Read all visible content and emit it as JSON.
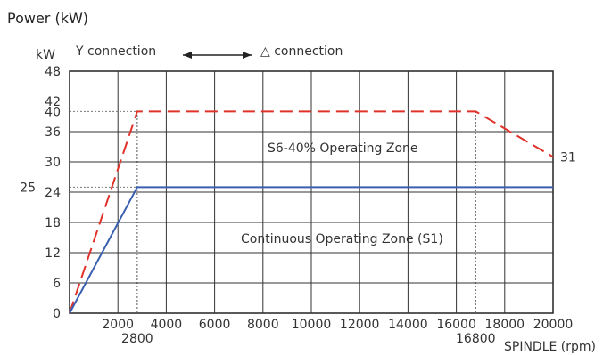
{
  "chart_data": {
    "type": "line",
    "title": "Power (kW)",
    "ylabel": "kW",
    "xlabel": "SPINDLE (rpm)",
    "xlim": [
      0,
      20000
    ],
    "ylim": [
      0,
      48
    ],
    "grid": true,
    "x_ticks": [
      "2000",
      "4000",
      "6000",
      "8000",
      "10000",
      "12000",
      "14000",
      "16000",
      "18000",
      "20000"
    ],
    "x_tick_values": [
      2000,
      4000,
      6000,
      8000,
      10000,
      12000,
      14000,
      16000,
      18000,
      20000
    ],
    "x_extra_ticks": [
      {
        "value": 2800,
        "label": "2800"
      },
      {
        "value": 16800,
        "label": "16800"
      }
    ],
    "y_ticks": [
      "0",
      "6",
      "12",
      "18",
      "24",
      "30",
      "36",
      "40",
      "42",
      "48"
    ],
    "y_tick_values": [
      0,
      6,
      12,
      18,
      24,
      30,
      36,
      40,
      42,
      48
    ],
    "y_extra_ticks": [
      {
        "value": 25,
        "label": "25"
      }
    ],
    "series": [
      {
        "name": "S6-40%",
        "style": "dashed",
        "color": "#e0312b",
        "x": [
          0,
          2800,
          16800,
          20000
        ],
        "y": [
          0,
          40,
          40,
          31
        ],
        "end_label": "31"
      },
      {
        "name": "S1",
        "style": "solid",
        "color": "#3a5fb0",
        "x": [
          0,
          2800,
          20000
        ],
        "y": [
          0,
          25,
          25
        ]
      }
    ],
    "annotations": [
      {
        "text": "Y connection"
      },
      {
        "text": "△ connection"
      },
      {
        "text": "S6-40%  Operating Zone"
      },
      {
        "text": "Continuous Operating Zone (S1)"
      }
    ]
  }
}
